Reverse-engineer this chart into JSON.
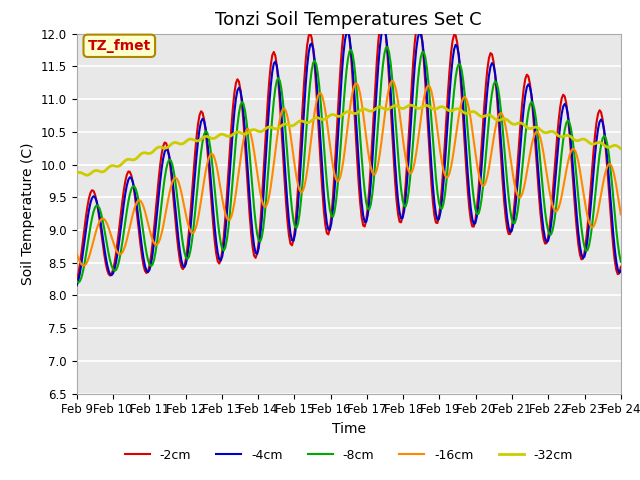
{
  "title": "Tonzi Soil Temperatures Set C",
  "xlabel": "Time",
  "ylabel": "Soil Temperature (C)",
  "ylim": [
    6.5,
    12.0
  ],
  "x_tick_labels": [
    "Feb 9",
    "Feb 10",
    "Feb 11",
    "Feb 12",
    "Feb 13",
    "Feb 14",
    "Feb 15",
    "Feb 16",
    "Feb 17",
    "Feb 18",
    "Feb 19",
    "Feb 20",
    "Feb 21",
    "Feb 22",
    "Feb 23",
    "Feb 24"
  ],
  "legend_labels": [
    "-2cm",
    "-4cm",
    "-8cm",
    "-16cm",
    "-32cm"
  ],
  "legend_colors": [
    "#dd0000",
    "#0000cc",
    "#00aa00",
    "#ff8800",
    "#cccc00"
  ],
  "line_widths": [
    1.5,
    1.5,
    1.5,
    1.5,
    2.0
  ],
  "annotation_text": "TZ_fmet",
  "annotation_color": "#cc0000",
  "annotation_bg": "#ffffcc",
  "background_color": "#e8e8e8",
  "grid_color": "#ffffff",
  "fig_bg": "#ffffff",
  "title_fontsize": 13,
  "label_fontsize": 10,
  "tick_fontsize": 8.5,
  "legend_fontsize": 9
}
